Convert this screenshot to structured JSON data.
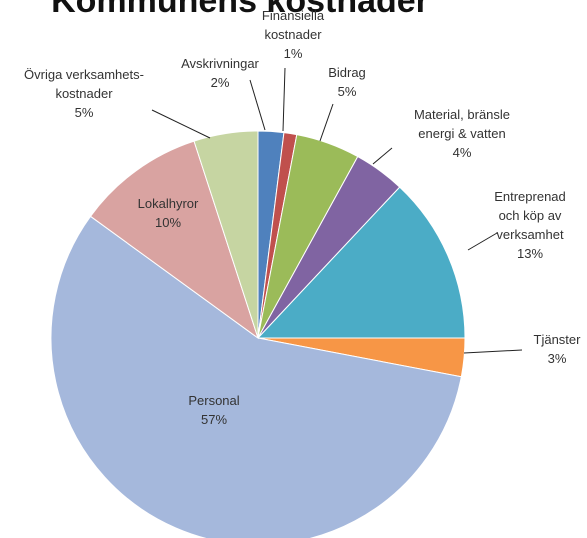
{
  "chart_data": {
    "type": "pie",
    "title": "Kommunens kostnader",
    "categories": [
      "Avskrivningar",
      "Finansiella\nkostnader",
      "Bidrag",
      "Material, bränsle\nenergi & vatten",
      "Entreprenad\noch köp av\nverksamhet",
      "Tjänster",
      "Personal",
      "Lokalhyror",
      "Övriga verksamhets-\nkostnader"
    ],
    "values": [
      2,
      1,
      5,
      4,
      13,
      3,
      57,
      10,
      5
    ],
    "value_labels": [
      "2%",
      "1%",
      "5%",
      "4%",
      "13%",
      "3%",
      "57%",
      "10%",
      "5%"
    ],
    "colors": [
      "#4f81bd",
      "#c0504d",
      "#9bbb59",
      "#8064a2",
      "#4bacc6",
      "#f79646",
      "#a5b8dc",
      "#d9a3a1",
      "#c6d5a2"
    ]
  }
}
